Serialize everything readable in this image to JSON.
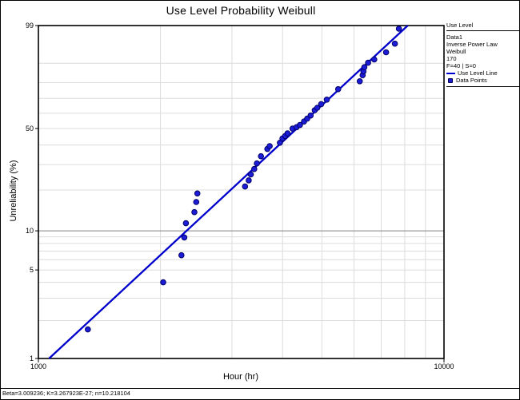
{
  "title": "Use Level Probability Weibull",
  "legend": {
    "header": "Use Level",
    "info_lines": [
      "Data1",
      "Inverse Power Law",
      "Weibull",
      "170",
      "F=40 | S=0"
    ],
    "line_item": "Use Level Line",
    "points_item": "Data Points"
  },
  "status_bar": {
    "text": "Beta=3.009236; K=3.267923E-27; n=10.218104"
  },
  "chart_data": {
    "type": "scatter",
    "title": "Use Level Probability Weibull",
    "xlabel": "Hour (hr)",
    "ylabel": "Unreliability (%)",
    "x_scale": "log",
    "y_scale": "weibull-probability",
    "xlim": [
      1000,
      10000
    ],
    "ylim": [
      1,
      99
    ],
    "x_ticks": [
      1000,
      10000
    ],
    "x_gridlines": [
      2000,
      3000,
      4000,
      5000,
      6000,
      7000,
      8000,
      9000
    ],
    "y_ticks": [
      99,
      50,
      10,
      5,
      1
    ],
    "y_gridlines_light": [
      90,
      80,
      70,
      60,
      50,
      40,
      30,
      20,
      9,
      8,
      7,
      6,
      5,
      4,
      3,
      2
    ],
    "y_gridlines_dark": [
      10
    ],
    "fit_line": {
      "beta": 3.009236,
      "eta_est": 4900,
      "f_range": [
        1,
        99
      ]
    },
    "series": [
      {
        "name": "Use Level Line",
        "kind": "line",
        "color": "#0000CD"
      },
      {
        "name": "Data Points",
        "kind": "scatter",
        "color": "#1C1CD8"
      }
    ],
    "points_hour_unrel": [
      [
        1324,
        1.7
      ],
      [
        2031,
        4.0
      ],
      [
        2252,
        6.5
      ],
      [
        2290,
        8.9
      ],
      [
        2310,
        11.4
      ],
      [
        2425,
        13.8
      ],
      [
        2450,
        16.4
      ],
      [
        2465,
        18.9
      ],
      [
        3232,
        21.2
      ],
      [
        3300,
        23.4
      ],
      [
        3340,
        25.7
      ],
      [
        3405,
        28.0
      ],
      [
        3456,
        30.5
      ],
      [
        3537,
        34.0
      ],
      [
        3668,
        37.8
      ],
      [
        3718,
        39.4
      ],
      [
        3940,
        41.3
      ],
      [
        3998,
        43.8
      ],
      [
        4060,
        45.3
      ],
      [
        4114,
        46.9
      ],
      [
        4232,
        49.9
      ],
      [
        4330,
        50.8
      ],
      [
        4413,
        52.2
      ],
      [
        4516,
        54.5
      ],
      [
        4600,
        56.4
      ],
      [
        4690,
        58.5
      ],
      [
        4800,
        62.1
      ],
      [
        4870,
        63.7
      ],
      [
        4980,
        66.2
      ],
      [
        5140,
        69.2
      ],
      [
        5483,
        76.0
      ],
      [
        6200,
        80.8
      ],
      [
        6300,
        84.2
      ],
      [
        6330,
        86.2
      ],
      [
        6360,
        88.2
      ],
      [
        6500,
        90.2
      ],
      [
        6730,
        91.5
      ],
      [
        7197,
        94.0
      ],
      [
        7565,
        96.3
      ],
      [
        7741,
        98.7
      ]
    ],
    "colors": {
      "line": "#0000CD",
      "point_fill": "#1C1CD8",
      "point_edge": "#000066",
      "grid_light": "#DCDCDC",
      "grid_dark": "#808080",
      "frame": "#000000"
    }
  }
}
